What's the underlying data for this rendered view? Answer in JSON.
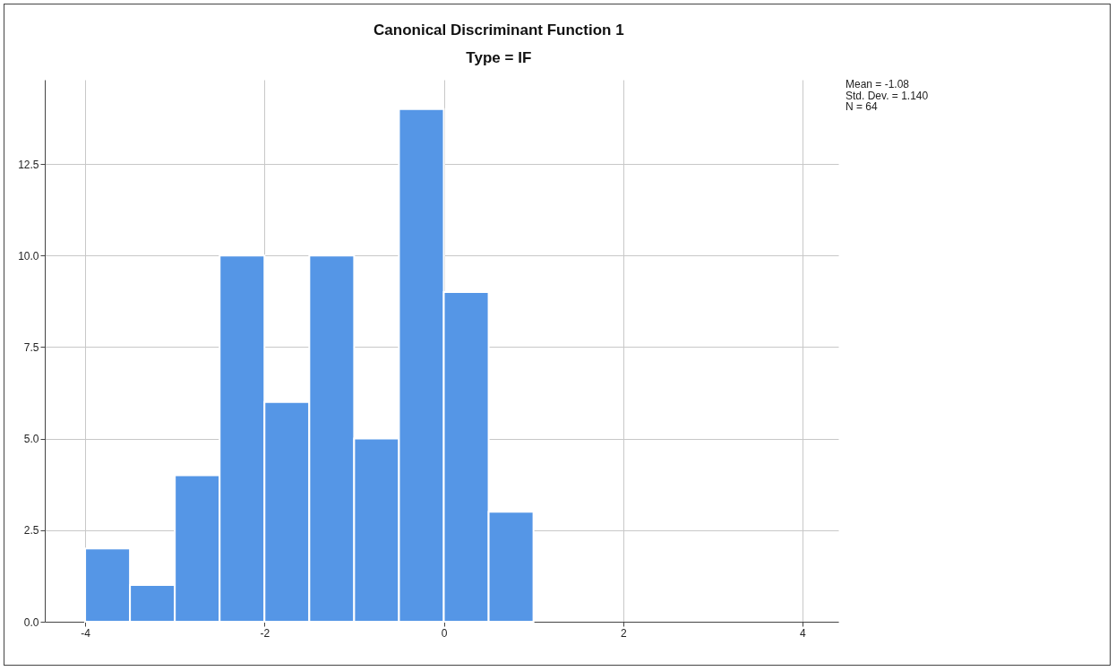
{
  "chart_data": {
    "type": "histogram",
    "title": "Canonical Discriminant Function 1",
    "subtitle": "Type = IF",
    "bins": [
      -4,
      -3.5,
      -3,
      -2.5,
      -2,
      -1.5,
      -1,
      -0.5,
      0,
      0.5,
      1
    ],
    "values": [
      2,
      1,
      4,
      10,
      6,
      10,
      5,
      14,
      9,
      3
    ],
    "color": "#5596e6",
    "xlim": [
      -4.45,
      4.4
    ],
    "xticks": [
      -4,
      -2,
      0,
      2,
      4
    ],
    "ylim": [
      0,
      14.8
    ],
    "yticks": [
      {
        "value": 0,
        "label": "0.0"
      },
      2.5,
      {
        "value": 5,
        "label": "5.0"
      },
      {
        "value": 7.5,
        "label": "7.5"
      },
      {
        "value": 10,
        "label": "10.0"
      },
      {
        "value": 12.5,
        "label": "12.5"
      }
    ],
    "grid": true,
    "annotations": [
      "Mean = -1.08",
      "Std. Dev. = 1.140",
      "N = 64"
    ]
  }
}
